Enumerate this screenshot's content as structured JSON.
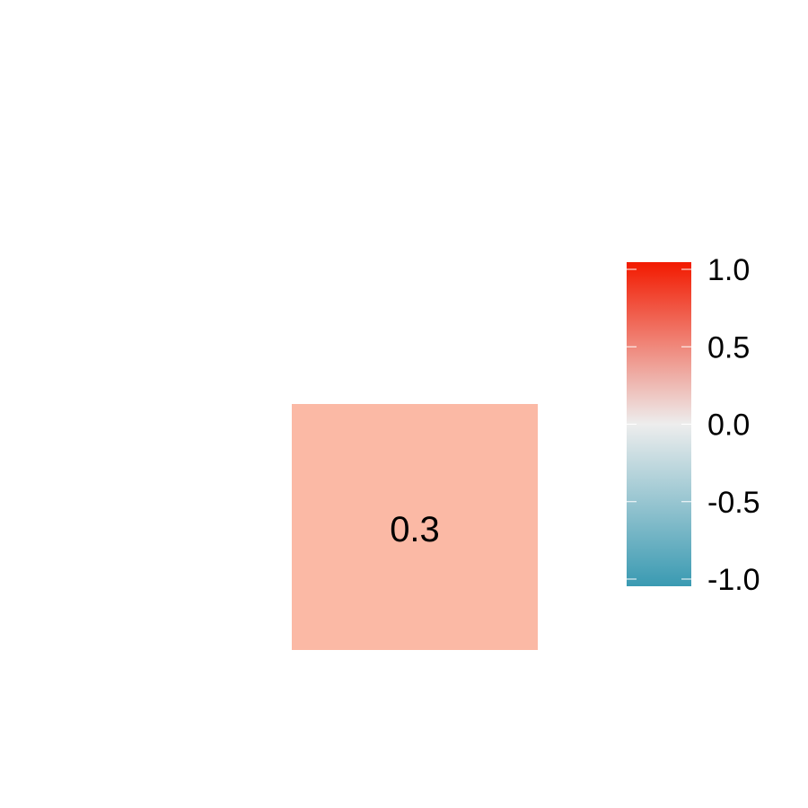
{
  "chart_data": {
    "type": "heatmap",
    "title": "",
    "xlabel": "",
    "ylabel": "",
    "cells": [
      {
        "value": 0.3,
        "label": "0.3",
        "color": "#FBB9A5"
      }
    ],
    "legend": {
      "position": "right",
      "range": [
        -1.0,
        1.0
      ],
      "ticks": [
        1.0,
        0.5,
        0.0,
        -0.5,
        -1.0
      ],
      "tick_labels": [
        "1.0",
        "0.5",
        "0.0",
        "-0.5",
        "-1.0"
      ],
      "gradient": {
        "high": "#F21A00",
        "mid": "#EDEDED",
        "low": "#3A9AB2"
      }
    }
  }
}
